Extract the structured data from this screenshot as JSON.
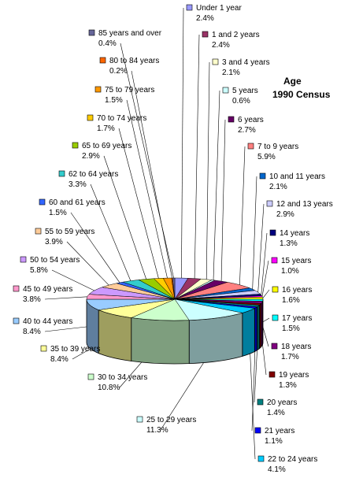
{
  "chart_data": {
    "type": "pie",
    "style": "3d-exploded-labels",
    "title": "Age",
    "subtitle": "1990 Census",
    "unit": "%",
    "slices": [
      {
        "label": "Under 1 year",
        "value": 2.4,
        "color": "#9999ff"
      },
      {
        "label": "1 and 2 years",
        "value": 2.4,
        "color": "#993366"
      },
      {
        "label": "3 and 4 years",
        "value": 2.1,
        "color": "#ffffcc"
      },
      {
        "label": "5 years",
        "value": 0.6,
        "color": "#ccffff"
      },
      {
        "label": "6 years",
        "value": 2.7,
        "color": "#660066"
      },
      {
        "label": "7 to 9 years",
        "value": 5.9,
        "color": "#ff8080"
      },
      {
        "label": "10 and 11 years",
        "value": 2.1,
        "color": "#0066cc"
      },
      {
        "label": "12 and 13 years",
        "value": 2.9,
        "color": "#ccccff"
      },
      {
        "label": "14 years",
        "value": 1.3,
        "color": "#000080"
      },
      {
        "label": "15 years",
        "value": 1.0,
        "color": "#ff00ff"
      },
      {
        "label": "16 years",
        "value": 1.6,
        "color": "#ffff00"
      },
      {
        "label": "17 years",
        "value": 1.5,
        "color": "#00ffff"
      },
      {
        "label": "18 years",
        "value": 1.7,
        "color": "#800080"
      },
      {
        "label": "19 years",
        "value": 1.3,
        "color": "#800000"
      },
      {
        "label": "20 years",
        "value": 1.4,
        "color": "#008080"
      },
      {
        "label": "21 years",
        "value": 1.1,
        "color": "#0000ff"
      },
      {
        "label": "22 to 24 years",
        "value": 4.1,
        "color": "#00ccff"
      },
      {
        "label": "25 to 29 years",
        "value": 11.3,
        "color": "#ccffff"
      },
      {
        "label": "30 to 34 years",
        "value": 10.8,
        "color": "#ccffcc"
      },
      {
        "label": "35 to 39 years",
        "value": 8.4,
        "color": "#ffff99"
      },
      {
        "label": "40 to 44 years",
        "value": 8.4,
        "color": "#99ccff"
      },
      {
        "label": "45 to 49 years",
        "value": 3.8,
        "color": "#ff99cc"
      },
      {
        "label": "50 to 54 years",
        "value": 5.8,
        "color": "#cc99ff"
      },
      {
        "label": "55 to 59 years",
        "value": 3.9,
        "color": "#ffcc99"
      },
      {
        "label": "60 and 61 years",
        "value": 1.5,
        "color": "#3366ff"
      },
      {
        "label": "62 to 64 years",
        "value": 3.3,
        "color": "#33cccc"
      },
      {
        "label": "65 to 69 years",
        "value": 2.9,
        "color": "#99cc00"
      },
      {
        "label": "70 to 74 years",
        "value": 1.7,
        "color": "#ffcc00"
      },
      {
        "label": "75 to 79 years",
        "value": 1.5,
        "color": "#ff9900"
      },
      {
        "label": "80 to 84 years",
        "value": 0.2,
        "color": "#ff6600"
      },
      {
        "label": "85 years and over",
        "value": 0.4,
        "color": "#666699"
      }
    ]
  }
}
